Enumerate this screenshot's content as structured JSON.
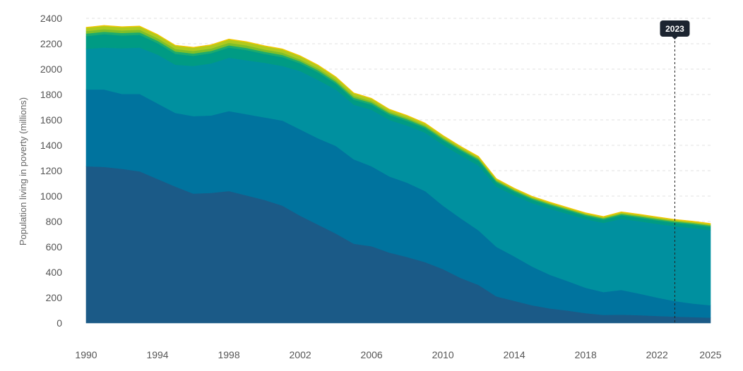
{
  "chart_data": {
    "type": "area",
    "stacked": true,
    "title": "",
    "xlabel": "",
    "ylabel": "Population living in poverty (millions)",
    "xlim": [
      1990,
      2025
    ],
    "ylim": [
      0,
      2400
    ],
    "x_ticks": [
      1990,
      1994,
      1998,
      2002,
      2006,
      2010,
      2014,
      2018,
      2022,
      2025
    ],
    "y_ticks": [
      0,
      200,
      400,
      600,
      800,
      1000,
      1200,
      1400,
      1600,
      1800,
      2000,
      2200,
      2400
    ],
    "grid": true,
    "legend": "none",
    "marker": {
      "x": 2023,
      "label": "2023"
    },
    "x": [
      1990,
      1991,
      1992,
      1993,
      1994,
      1995,
      1996,
      1997,
      1998,
      1999,
      2000,
      2001,
      2002,
      2003,
      2004,
      2005,
      2006,
      2007,
      2008,
      2009,
      2010,
      2011,
      2012,
      2013,
      2014,
      2015,
      2016,
      2017,
      2018,
      2019,
      2020,
      2021,
      2022,
      2023,
      2024,
      2025
    ],
    "series": [
      {
        "color": "#1b5a87",
        "values": [
          1235,
          1230,
          1215,
          1195,
          1135,
          1075,
          1020,
          1025,
          1040,
          1005,
          970,
          925,
          845,
          775,
          705,
          625,
          605,
          555,
          520,
          480,
          425,
          355,
          300,
          210,
          175,
          140,
          115,
          98,
          78,
          64,
          66,
          62,
          56,
          51,
          47,
          43
        ]
      },
      {
        "color": "#00739e",
        "values": [
          605,
          610,
          590,
          610,
          595,
          580,
          610,
          610,
          630,
          640,
          650,
          670,
          680,
          680,
          690,
          665,
          630,
          600,
          585,
          560,
          500,
          470,
          430,
          390,
          350,
          305,
          265,
          232,
          200,
          180,
          195,
          170,
          145,
          122,
          107,
          97
        ]
      },
      {
        "color": "#00909f",
        "values": [
          320,
          330,
          360,
          365,
          385,
          380,
          395,
          410,
          420,
          425,
          430,
          430,
          460,
          460,
          445,
          430,
          445,
          445,
          450,
          460,
          480,
          495,
          510,
          475,
          480,
          500,
          520,
          530,
          540,
          545,
          560,
          570,
          580,
          590,
          595,
          592
        ]
      },
      {
        "color": "#009b84",
        "values": [
          100,
          105,
          100,
          100,
          90,
          85,
          80,
          80,
          80,
          80,
          70,
          70,
          60,
          60,
          45,
          40,
          40,
          38,
          36,
          34,
          34,
          35,
          37,
          31,
          28,
          26,
          25,
          24,
          24,
          24,
          27,
          27,
          27,
          26,
          26,
          25
        ]
      },
      {
        "color": "#1dab6e",
        "values": [
          20,
          20,
          20,
          20,
          19,
          19,
          18,
          18,
          18,
          17,
          17,
          17,
          16,
          16,
          15,
          15,
          15,
          14,
          14,
          13,
          13,
          12,
          12,
          11,
          11,
          10,
          10,
          10,
          10,
          10,
          10,
          10,
          10,
          10,
          10,
          10
        ]
      },
      {
        "color": "#7fbf2a",
        "values": [
          20,
          20,
          20,
          20,
          20,
          20,
          20,
          20,
          20,
          20,
          18,
          18,
          15,
          15,
          15,
          14,
          13,
          12,
          11,
          10,
          10,
          10,
          9,
          8,
          7,
          7,
          7,
          6,
          6,
          6,
          7,
          7,
          7,
          6,
          6,
          6
        ]
      },
      {
        "color": "#afca1e",
        "values": [
          25,
          25,
          25,
          25,
          25,
          25,
          25,
          25,
          25,
          25,
          25,
          25,
          25,
          22,
          20,
          20,
          18,
          16,
          15,
          14,
          12,
          10,
          10,
          8,
          7,
          6,
          6,
          6,
          6,
          6,
          7,
          7,
          7,
          7,
          7,
          7
        ]
      },
      {
        "color": "#f2c600",
        "values": [
          5,
          5,
          5,
          5,
          5,
          5,
          5,
          5,
          5,
          5,
          5,
          5,
          5,
          5,
          5,
          5,
          5,
          5,
          5,
          5,
          5,
          5,
          5,
          5,
          5,
          5,
          5,
          5,
          5,
          5,
          5,
          5,
          5,
          5,
          5,
          5
        ]
      }
    ]
  }
}
